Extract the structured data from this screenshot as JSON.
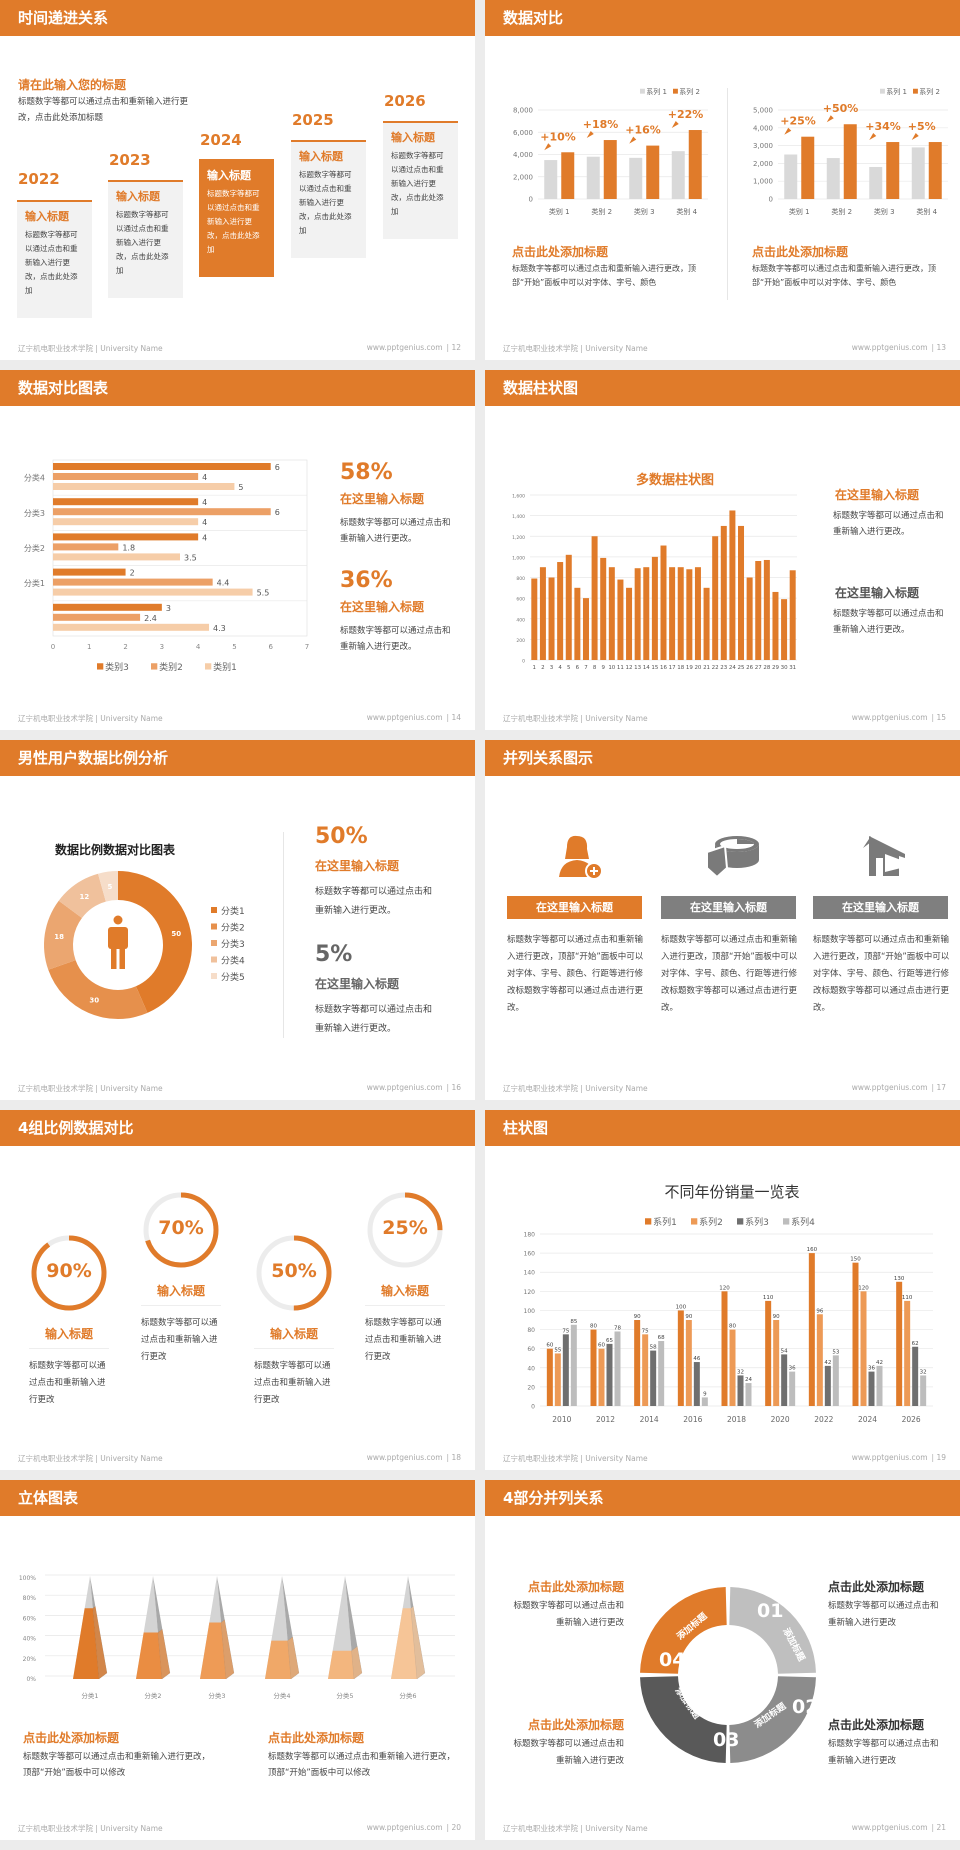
{
  "footer": {
    "school": "辽宁机电职业技术学院 | University Name",
    "url": "www.pptgenius.com"
  },
  "colors": {
    "accent": "#e07b2a",
    "light_orange": "#eca066",
    "pale_orange": "#f6cda8",
    "dark_gray": "#595959",
    "mid_gray": "#7f7f7f",
    "light_gray": "#d9d9d9"
  },
  "s12": {
    "title": "时间递进关系",
    "page": "| 12",
    "subtitle": "请在此输入您的标题",
    "intro": "标题数字等都可以通过点击和重新输入进行更改，点击此处添加标题",
    "items": [
      {
        "year": "2022",
        "title": "输入标题",
        "text": "标题数字等都可以通过点击和重新输入进行更改，点击此处添加"
      },
      {
        "year": "2023",
        "title": "输入标题",
        "text": "标题数字等都可以通过点击和重新输入进行更改，点击此处添加"
      },
      {
        "year": "2024",
        "title": "输入标题",
        "text": "标题数字等都可以通过点击和重新输入进行更改，点击此处添加"
      },
      {
        "year": "2025",
        "title": "输入标题",
        "text": "标题数字等都可以通过点击和重新输入进行更改，点击此处添加"
      },
      {
        "year": "2026",
        "title": "输入标题",
        "text": "标题数字等都可以通过点击和重新输入进行更改，点击此处添加"
      }
    ]
  },
  "s13": {
    "title": "数据对比",
    "page": "| 13",
    "blocks": [
      {
        "title": "点击此处添加标题",
        "text": "标题数字等都可以通过点击和重新输入进行更改，顶部“开始”面板中可以对字体、字号、颜色"
      },
      {
        "title": "点击此处添加标题",
        "text": "标题数字等都可以通过点击和重新输入进行更改，顶部“开始”面板中可以对字体、字号、颜色"
      }
    ]
  },
  "s14": {
    "title": "数据对比图表",
    "page": "| 14",
    "stats": [
      {
        "value": "58%",
        "title": "在这里输入标题",
        "text": "标题数字等都可以通过点击和重新输入进行更改。"
      },
      {
        "value": "36%",
        "title": "在这里输入标题",
        "text": "标题数字等都可以通过点击和重新输入进行更改。"
      }
    ]
  },
  "s15": {
    "title": "数据柱状图",
    "page": "| 15",
    "notes": [
      {
        "title": "在这里输入标题",
        "text": "标题数字等都可以通过点击和重新输入进行更改。"
      },
      {
        "title": "在这里输入标题",
        "text": "标题数字等都可以通过点击和重新输入进行更改。"
      }
    ]
  },
  "s16": {
    "title": "男性用户数据比例分析",
    "page": "| 16",
    "stats": [
      {
        "value": "50%",
        "title": "在这里输入标题",
        "text": "标题数字等都可以通过点击和重新输入进行更改。"
      },
      {
        "value": "5%",
        "title": "在这里输入标题",
        "text": "标题数字等都可以通过点击和重新输入进行更改。"
      }
    ]
  },
  "s17": {
    "title": "并列关系图示",
    "page": "| 17",
    "columns": [
      {
        "icon": "user-add-icon",
        "label": "在这里输入标题",
        "text": "标题数字等都可以通过点击和重新输入进行更改，顶部“开始”面板中可以对字体、字号、颜色、行距等进行修改标题数字等都可以通过点击进行更改。"
      },
      {
        "icon": "pie-chart-3d-icon",
        "label": "在这里输入标题",
        "text": "标题数字等都可以通过点击和重新输入进行更改，顶部“开始”面板中可以对字体、字号、颜色、行距等进行修改标题数字等都可以通过点击进行更改。"
      },
      {
        "icon": "building-icon",
        "label": "在这里输入标题",
        "text": "标题数字等都可以通过点击和重新输入进行更改，顶部“开始”面板中可以对字体、字号、颜色、行距等进行修改标题数字等都可以通过点击进行更改。"
      }
    ]
  },
  "s18": {
    "title": "4组比例数据对比",
    "page": "| 18",
    "rings": [
      {
        "percent": 90,
        "label": "90%",
        "title": "输入标题",
        "text": "标题数字等都可以通过点击和重新输入进行更改"
      },
      {
        "percent": 70,
        "label": "70%",
        "title": "输入标题",
        "text": "标题数字等都可以通过点击和重新输入进行更改"
      },
      {
        "percent": 50,
        "label": "50%",
        "title": "输入标题",
        "text": "标题数字等都可以通过点击和重新输入进行更改"
      },
      {
        "percent": 25,
        "label": "25%",
        "title": "输入标题",
        "text": "标题数字等都可以通过点击和重新输入进行更改"
      }
    ]
  },
  "s19": {
    "title": "柱状图",
    "page": "| 19"
  },
  "s20": {
    "title": "立体图表",
    "page": "| 20",
    "blocks": [
      {
        "title": "点击此处添加标题",
        "text": "标题数字等都可以通过点击和重新输入进行更改，顶部“开始”面板中可以修改"
      },
      {
        "title": "点击此处添加标题",
        "text": "标题数字等都可以通过点击和重新输入进行更改，顶部“开始”面板中可以修改"
      }
    ]
  },
  "s21": {
    "title": "4部分并列关系",
    "page": "| 21",
    "segments": [
      {
        "number": "01",
        "label": "添加标题"
      },
      {
        "number": "02",
        "label": "添加标题"
      },
      {
        "number": "03",
        "label": "添加标题"
      },
      {
        "number": "04",
        "label": "添加标题"
      }
    ],
    "notes": [
      {
        "title": "点击此处添加标题",
        "text": "标题数字等都可以通过点击和重新输入进行更改"
      },
      {
        "title": "点击此处添加标题",
        "text": "标题数字等都可以通过点击和重新输入进行更改"
      },
      {
        "title": "点击此处添加标题",
        "text": "标题数字等都可以通过点击和重新输入进行更改"
      },
      {
        "title": "点击此处添加标题",
        "text": "标题数字等都可以通过点击和重新输入进行更改"
      }
    ]
  },
  "chart_data": [
    {
      "type": "bar",
      "categories": [
        "类别 1",
        "类别 2",
        "类别 3",
        "类别 4"
      ],
      "series": [
        {
          "name": "系列 1",
          "values": [
            3500,
            3800,
            3700,
            4300
          ]
        },
        {
          "name": "系列 2",
          "values": [
            4200,
            5300,
            4800,
            6200
          ]
        }
      ],
      "annotations": [
        "+10%",
        "+18%",
        "+16%",
        "+22%"
      ],
      "ylim": [
        0,
        8000
      ],
      "yticks": [
        "0",
        "2,000",
        "4,000",
        "6,000",
        "8,000"
      ],
      "grid": true,
      "legend": "top-right"
    },
    {
      "type": "bar",
      "categories": [
        "类别 1",
        "类别 2",
        "类别 3",
        "类别 4"
      ],
      "series": [
        {
          "name": "系列 1",
          "values": [
            2500,
            2300,
            1800,
            2900
          ]
        },
        {
          "name": "系列 2",
          "values": [
            3500,
            4200,
            3200,
            3200
          ]
        }
      ],
      "annotations": [
        "+25%",
        "+50%",
        "+34%",
        "+5%"
      ],
      "ylim": [
        0,
        5000
      ],
      "yticks": [
        "0",
        "1,000",
        "2,000",
        "3,000",
        "4,000",
        "5,000"
      ],
      "grid": true,
      "legend": "top-right"
    },
    {
      "type": "bar",
      "orientation": "horizontal",
      "categories": [
        "分类4",
        "分类3",
        "分类2",
        "分类1",
        ""
      ],
      "series": [
        {
          "name": "类别3",
          "values": [
            6,
            4,
            4,
            2,
            3
          ]
        },
        {
          "name": "类别2",
          "values": [
            4,
            6,
            1.8,
            4.4,
            2.4
          ]
        },
        {
          "name": "类别1",
          "values": [
            5,
            4,
            3.5,
            5.5,
            4.3
          ]
        }
      ],
      "xlim": [
        0,
        7
      ],
      "xticks": [
        "0",
        "1",
        "2",
        "3",
        "4",
        "5",
        "6",
        "7"
      ],
      "legend": "bottom"
    },
    {
      "type": "bar",
      "title": "多数据柱状图",
      "categories": [
        "1",
        "2",
        "3",
        "4",
        "5",
        "6",
        "7",
        "8",
        "9",
        "10",
        "11",
        "12",
        "13",
        "14",
        "15",
        "16",
        "17",
        "18",
        "19",
        "20",
        "21",
        "22",
        "23",
        "24",
        "25",
        "26",
        "27",
        "28",
        "29",
        "30",
        "31"
      ],
      "values": [
        790,
        900,
        800,
        950,
        1020,
        700,
        600,
        1200,
        990,
        900,
        780,
        700,
        890,
        900,
        1000,
        1110,
        900,
        900,
        880,
        900,
        700,
        1200,
        1300,
        1450,
        1300,
        800,
        960,
        970,
        660,
        590,
        870
      ],
      "ylim": [
        0,
        1600
      ],
      "yticks": [
        "0",
        "200",
        "400",
        "600",
        "800",
        "1,000",
        "1,200",
        "1,400",
        "1,600"
      ],
      "grid": true
    },
    {
      "type": "pie",
      "subtype": "donut",
      "title": "数据比例数据对比图表",
      "categories": [
        "分类1",
        "分类2",
        "分类3",
        "分类4",
        "分类5"
      ],
      "values": [
        50,
        30,
        18,
        12,
        5
      ],
      "legend": "right"
    },
    {
      "type": "bar",
      "title": "不同年份销量一览表",
      "categories": [
        "2010",
        "2012",
        "2014",
        "2016",
        "2018",
        "2020",
        "2022",
        "2024",
        "2026"
      ],
      "series": [
        {
          "name": "系列1",
          "values": [
            60,
            80,
            90,
            100,
            120,
            110,
            160,
            150,
            130
          ]
        },
        {
          "name": "系列2",
          "values": [
            55,
            60,
            75,
            90,
            80,
            90,
            96,
            120,
            110
          ]
        },
        {
          "name": "系列3",
          "values": [
            75,
            65,
            58,
            46,
            32,
            54,
            42,
            36,
            62
          ]
        },
        {
          "name": "系列4",
          "values": [
            85,
            78,
            68,
            9,
            24,
            36,
            53,
            42,
            32
          ]
        }
      ],
      "ylim": [
        0,
        180
      ],
      "yticks": [
        "0",
        "20",
        "40",
        "60",
        "80",
        "100",
        "120",
        "140",
        "160",
        "180"
      ],
      "grid": true,
      "legend": "top"
    },
    {
      "type": "bar",
      "subtype": "3d-pyramid",
      "categories": [
        "分类1",
        "分类2",
        "分类3",
        "分类4",
        "分类5",
        "分类6"
      ],
      "values": [
        70,
        46,
        56,
        38,
        28,
        70
      ],
      "ylim": [
        0,
        100
      ],
      "yticks": [
        "0%",
        "20%",
        "40%",
        "60%",
        "80%",
        "100%"
      ],
      "grid": true
    }
  ]
}
